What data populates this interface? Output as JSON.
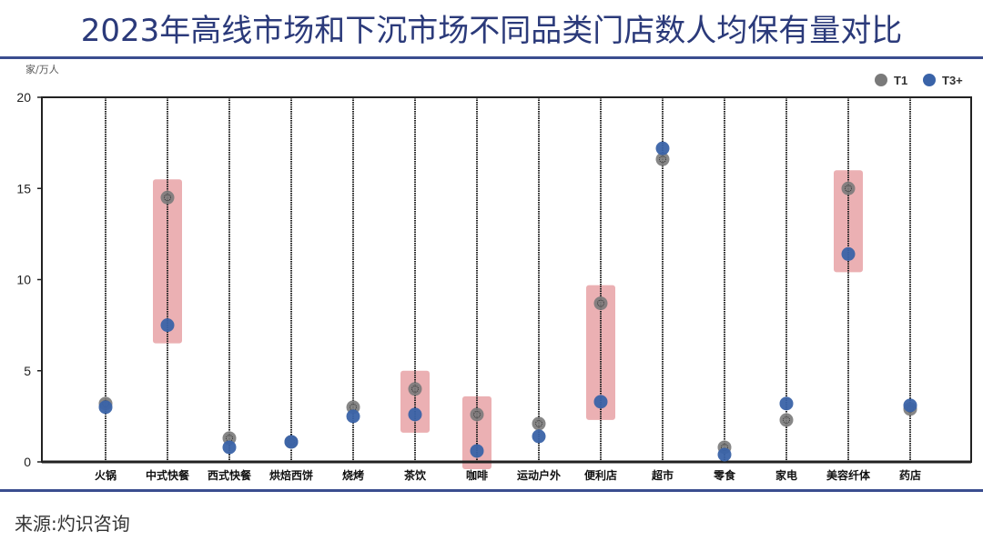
{
  "title": "2023年高线市场和下沉市场不同品类门店数人均保有量对比",
  "source": "来源:灼识咨询",
  "unit_label": "家/万人",
  "legend": [
    {
      "name": "T1",
      "color": "#7a7a7a"
    },
    {
      "name": "T3+",
      "color": "#3a63a8"
    }
  ],
  "colors": {
    "title": "#2b3a7a",
    "rule": "#3a4d8f",
    "highlight": "#e7a2a6"
  },
  "chart_data": {
    "type": "scatter",
    "title": "2023年高线市场和下沉市场不同品类门店数人均保有量对比",
    "xlabel": "",
    "ylabel": "家/万人",
    "ylim": [
      0,
      20
    ],
    "yticks": [
      0,
      5,
      10,
      15,
      20
    ],
    "grid": "vertical dotted lines at each category",
    "legend_position": "top-right",
    "categories": [
      "火锅",
      "中式快餐",
      "西式快餐",
      "烘焙西饼",
      "烧烤",
      "茶饮",
      "咖啡",
      "运动户外",
      "便利店",
      "超市",
      "零食",
      "家电",
      "美容纤体",
      "药店"
    ],
    "series": [
      {
        "name": "T1",
        "values": [
          3.2,
          14.5,
          1.3,
          1.1,
          3.0,
          4.0,
          2.6,
          2.1,
          8.7,
          16.6,
          0.8,
          2.3,
          15.0,
          2.9
        ]
      },
      {
        "name": "T3+",
        "values": [
          3.0,
          7.5,
          0.8,
          1.1,
          2.5,
          2.6,
          0.6,
          1.4,
          3.3,
          17.2,
          0.4,
          3.2,
          11.4,
          3.1
        ]
      }
    ],
    "highlighted_categories": [
      "中式快餐",
      "茶饮",
      "咖啡",
      "便利店",
      "美容纤体"
    ]
  }
}
